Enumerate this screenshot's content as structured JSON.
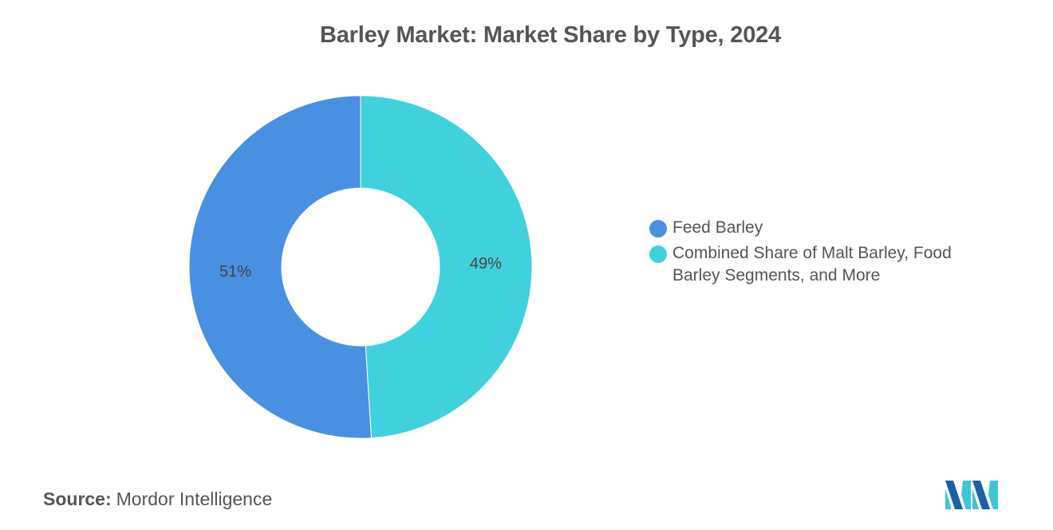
{
  "title": "Barley Market: Market Share by Type, 2024",
  "source": {
    "label": "Source:",
    "value": "Mordor Intelligence"
  },
  "logo_icon": "mordor-intelligence-logo",
  "chart_data": {
    "type": "pie",
    "variant": "donut",
    "categories": [
      "Feed Barley",
      "Combined Share of Malt Barley, Food Barley Segments, and More"
    ],
    "values": [
      51,
      49
    ],
    "data_labels": [
      "51%",
      "49%"
    ],
    "colors": [
      "#4a90e2",
      "#41d1dc"
    ],
    "legend_position": "right"
  }
}
